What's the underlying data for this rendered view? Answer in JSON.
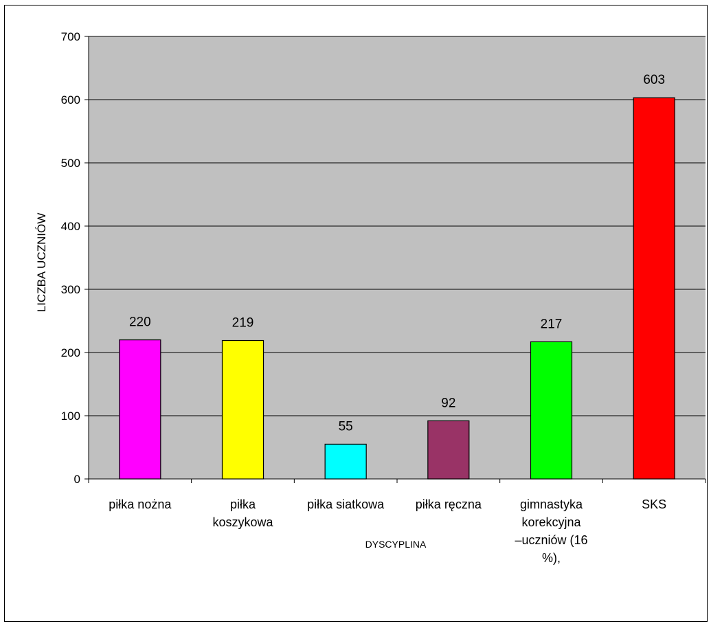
{
  "chart_data": {
    "type": "bar",
    "categories": [
      [
        "piłka nożna"
      ],
      [
        "piłka",
        "koszykowa"
      ],
      [
        "piłka siatkowa"
      ],
      [
        "piłka ręczna"
      ],
      [
        "gimnastyka",
        "korekcyjna",
        "–uczniów (16",
        "%),"
      ],
      [
        "SKS"
      ]
    ],
    "values": [
      220,
      219,
      55,
      92,
      217,
      603
    ],
    "data_labels": [
      "220",
      "219",
      "55",
      "92",
      "217",
      "603"
    ],
    "colors": [
      "#FF00FF",
      "#FFFF00",
      "#00FFFF",
      "#993366",
      "#00FF00",
      "#FF0000"
    ],
    "title": "",
    "xlabel": "DYSCYPLINA",
    "ylabel": "LICZBA UCZNIÓW",
    "ylim": [
      0,
      700
    ],
    "yticks": [
      "0",
      "100",
      "200",
      "300",
      "400",
      "500",
      "600",
      "700"
    ],
    "grid": true,
    "plot_background": "#C0C0C0",
    "legend": "none"
  }
}
